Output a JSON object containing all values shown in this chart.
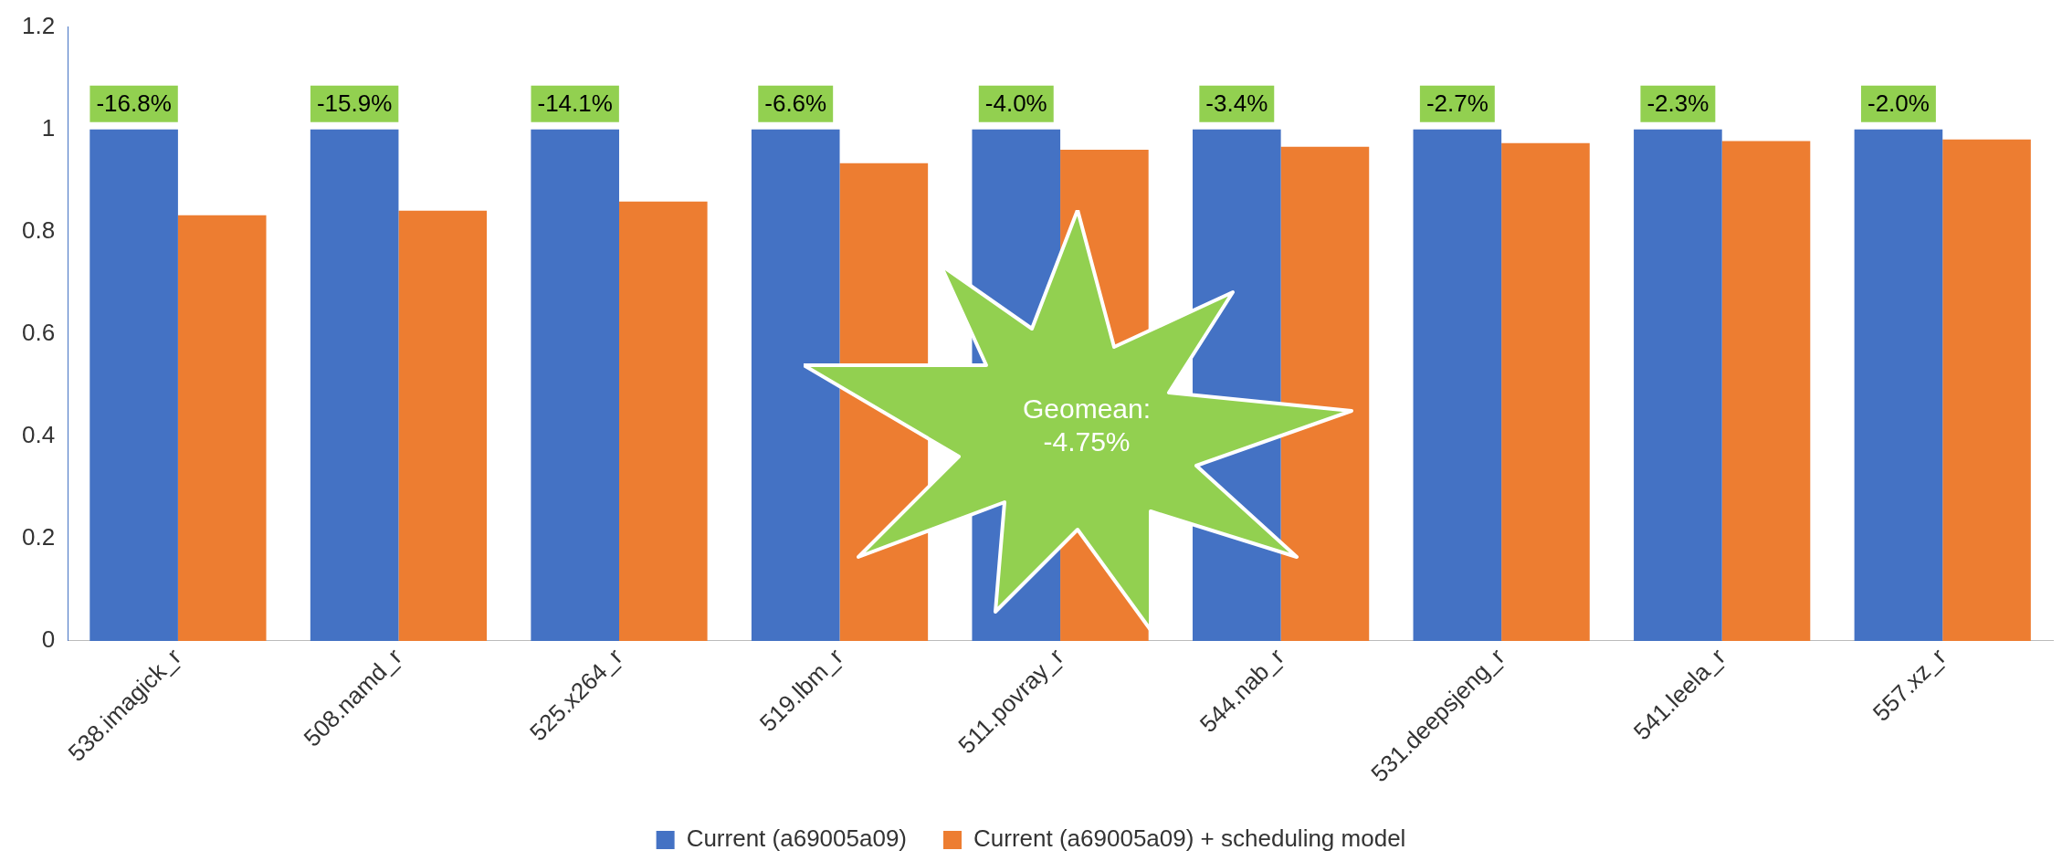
{
  "chart_data": {
    "type": "bar",
    "categories": [
      "538.imagick_r",
      "508.namd_r",
      "525.x264_r",
      "519.lbm_r",
      "511.povray_r",
      "544.nab_r",
      "531.deepsjeng_r",
      "541.leela_r",
      "557.xz_r"
    ],
    "series": [
      {
        "name": "Current (a69005a09)",
        "color": "#4472c4",
        "values": [
          1,
          1,
          1,
          1,
          1,
          1,
          1,
          1,
          1
        ]
      },
      {
        "name": "Current (a69005a09) + scheduling model",
        "color": "#ed7d31",
        "values": [
          0.832,
          0.841,
          0.859,
          0.934,
          0.96,
          0.966,
          0.973,
          0.977,
          0.98
        ]
      }
    ],
    "ylim": [
      0,
      1.2
    ],
    "yticks": [
      0,
      0.2,
      0.4,
      0.6,
      0.8,
      1,
      1.2
    ],
    "grid": false,
    "legend": "bottom",
    "annotations": [
      "Geomean: -4.75%",
      {
        "text": "-16.8%",
        "x": "538.imagick_r",
        "y": 1
      },
      {
        "text": "-15.9%",
        "x": "508.namd_r",
        "y": 1
      },
      {
        "text": "-14.1%",
        "x": "525.x264_r",
        "y": 1
      },
      {
        "text": "-6.6%",
        "x": "519.lbm_r",
        "y": 1
      },
      {
        "text": "-4.0%",
        "x": "511.povray_r",
        "y": 1
      },
      {
        "text": "-3.4%",
        "x": "544.nab_r",
        "y": 1
      },
      {
        "text": "-2.7%",
        "x": "531.deepsjeng_r",
        "y": 1
      },
      {
        "text": "-2.3%",
        "x": "541.leela_r",
        "y": 1
      },
      {
        "text": "-2.0%",
        "x": "557.xz_r",
        "y": 1
      }
    ]
  }
}
